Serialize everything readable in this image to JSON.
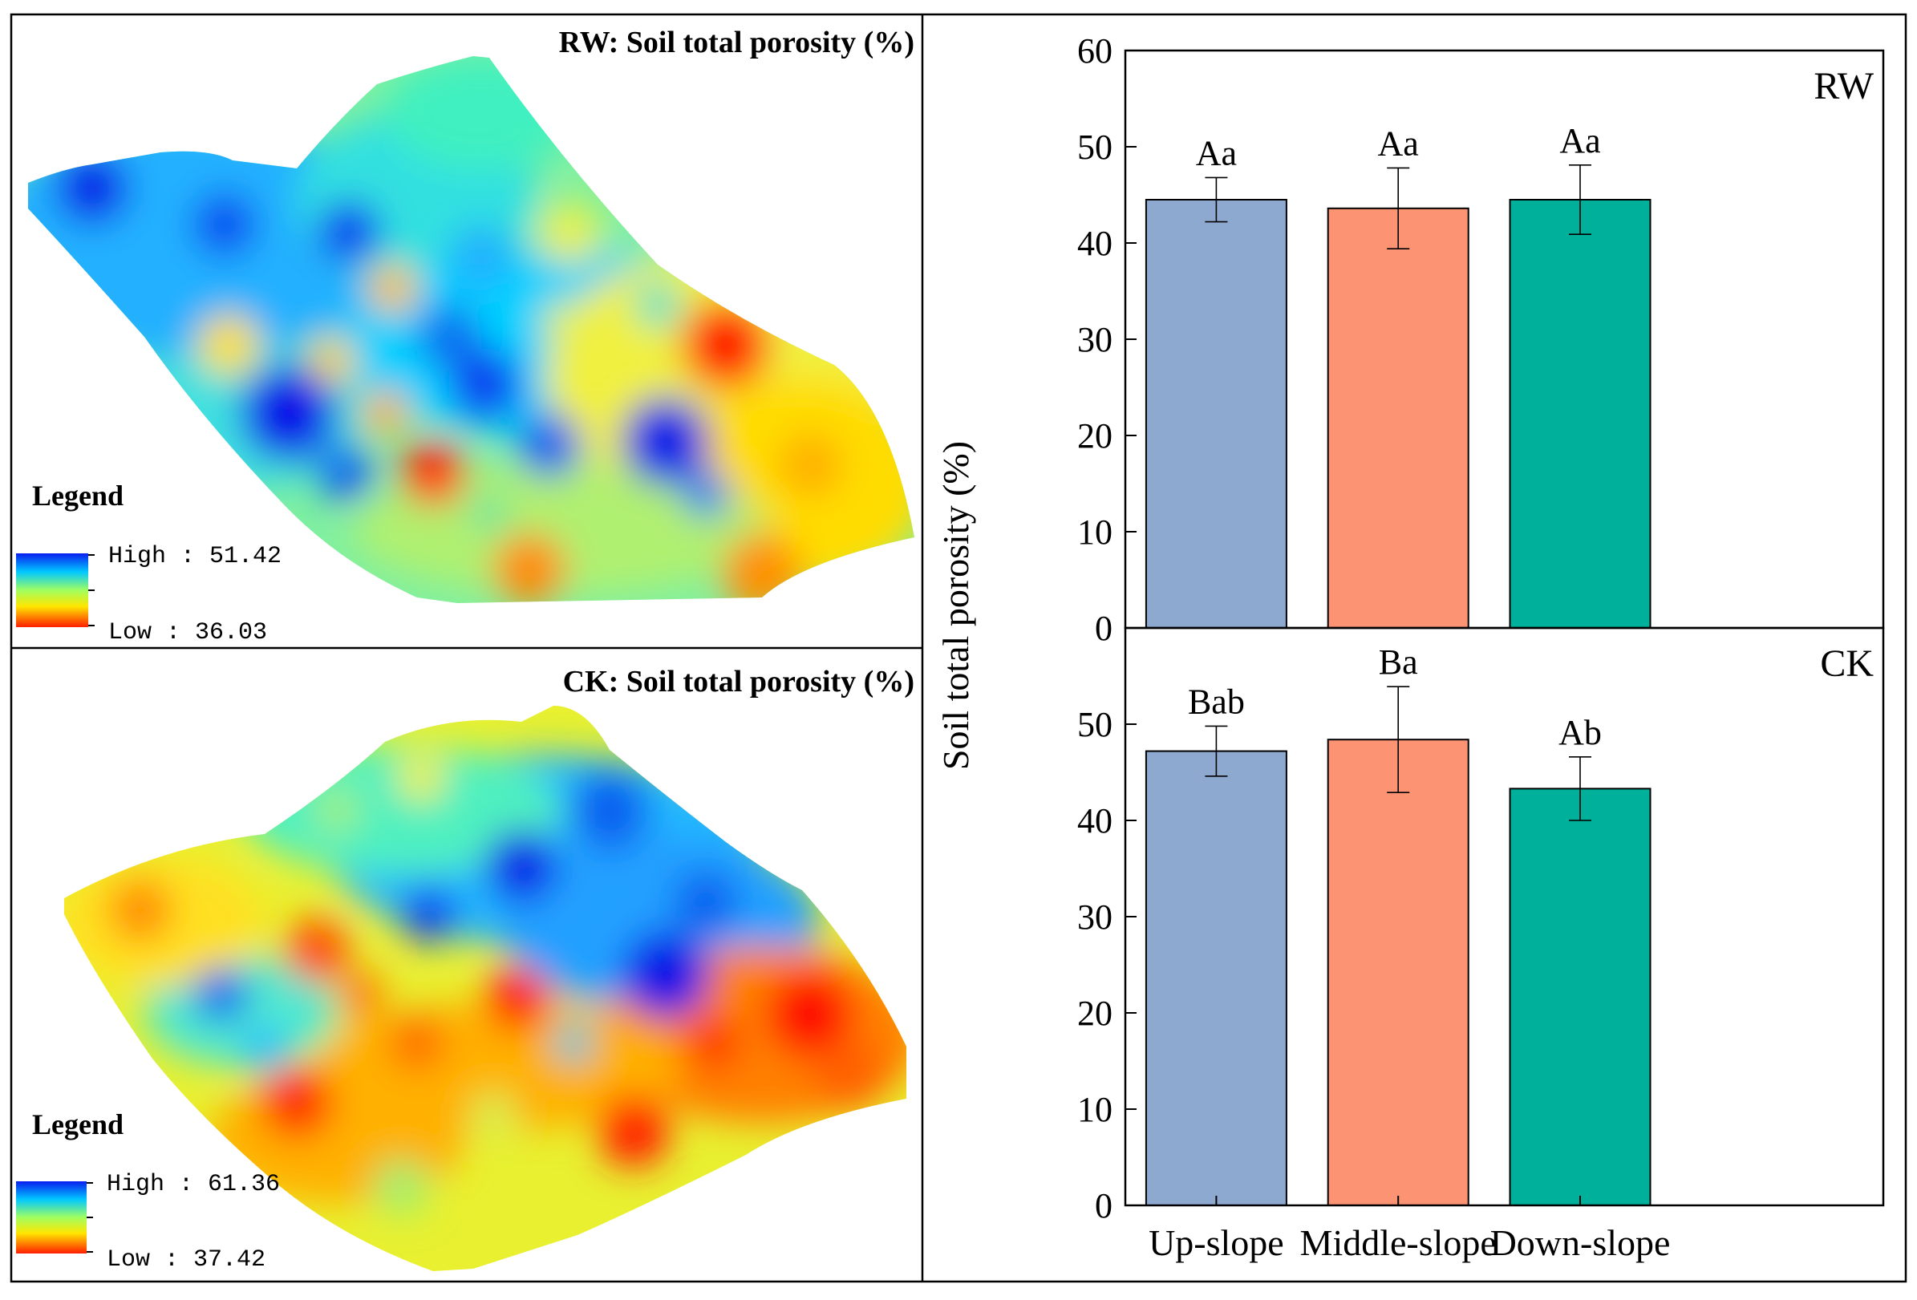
{
  "maps": [
    {
      "id": "rw",
      "title": "RW: Soil total porosity (%)",
      "legend_title": "Legend",
      "legend_high": "High : 51.42",
      "legend_low": "Low : 36.03"
    },
    {
      "id": "ck",
      "title": "CK:   Soil total porosity (%)",
      "legend_title": "Legend",
      "legend_high": "High : 61.36",
      "legend_low": "Low : 37.42"
    }
  ],
  "colors": {
    "up": "#8EA9D0",
    "middle": "#FC9373",
    "down": "#00B09A",
    "axis": "#000000",
    "ramp_high": "#0a1ef0",
    "ramp_low": "#ff1e00"
  },
  "chart_data": {
    "type": "bar",
    "ylabel": "Soil total porosity (%)",
    "categories": [
      "Up-slope",
      "Middle-slope",
      "Down-slope"
    ],
    "panels": [
      {
        "name": "RW",
        "ylim": [
          0,
          60
        ],
        "yticks": [
          0,
          10,
          20,
          30,
          40,
          50,
          60
        ],
        "values": [
          44.5,
          43.6,
          44.5
        ],
        "errors": [
          2.3,
          4.2,
          3.6
        ],
        "labels": [
          "Aa",
          "Aa",
          "Aa"
        ]
      },
      {
        "name": "CK",
        "ylim": [
          0,
          60
        ],
        "yticks": [
          0,
          10,
          20,
          30,
          40,
          50
        ],
        "values": [
          47.2,
          48.4,
          43.3
        ],
        "errors": [
          2.6,
          5.5,
          3.3
        ],
        "labels": [
          "Bab",
          "Ba",
          "Ab"
        ]
      }
    ]
  }
}
